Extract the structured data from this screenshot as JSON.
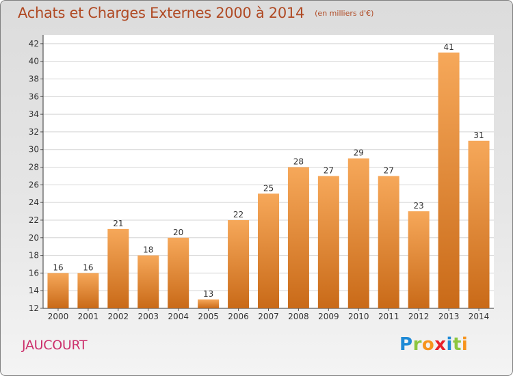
{
  "header": {
    "title": "Achats et Charges Externes 2000 à 2014",
    "subtitle": "(en milliers d'€)"
  },
  "footer": {
    "commune": "JAUCOURT",
    "logo_text": "Proxiti",
    "logo_colors": [
      "#1e8ad6",
      "#8cc63f",
      "#f7941d",
      "#e8212b",
      "#1e8ad6",
      "#8cc63f",
      "#f7941d"
    ]
  },
  "chart_data": {
    "type": "bar",
    "title": "Achats et Charges Externes 2000 à 2014",
    "subtitle": "(en milliers d'€)",
    "categories": [
      "2000",
      "2001",
      "2002",
      "2003",
      "2004",
      "2005",
      "2006",
      "2007",
      "2008",
      "2009",
      "2010",
      "2011",
      "2012",
      "2013",
      "2014"
    ],
    "values": [
      16,
      16,
      21,
      18,
      20,
      13,
      22,
      25,
      28,
      27,
      29,
      27,
      23,
      41,
      31
    ],
    "ylim": [
      12,
      43
    ],
    "yticks": [
      12,
      14,
      16,
      18,
      20,
      22,
      24,
      26,
      28,
      30,
      32,
      34,
      36,
      38,
      40,
      42
    ],
    "grid": true,
    "bar_color_light": "#f6a85a",
    "bar_color_dark": "#c96a18"
  }
}
